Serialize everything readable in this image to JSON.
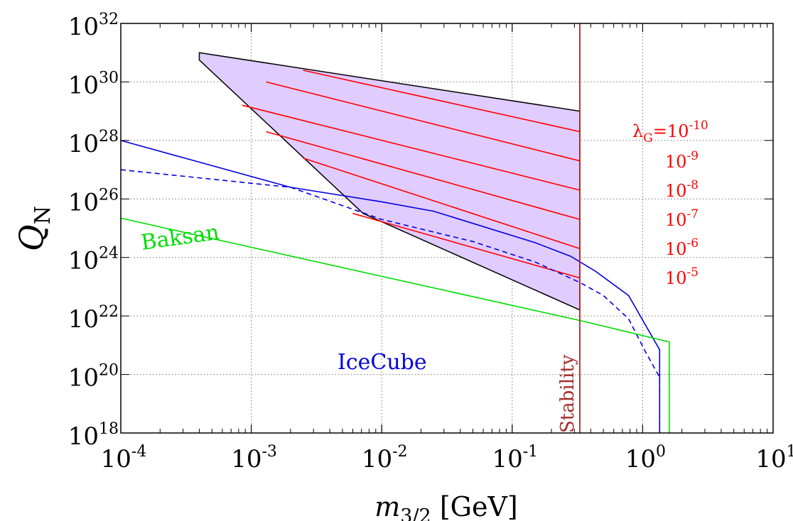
{
  "chart_data": {
    "type": "line",
    "x_scale": "log",
    "y_scale": "log",
    "xlim": [
      0.0001,
      10
    ],
    "ylim": [
      1e+18,
      1e+32
    ],
    "grid": true,
    "x_ticks": [
      {
        "value": 0.0001,
        "base": "10",
        "exp": "-4"
      },
      {
        "value": 0.001,
        "base": "10",
        "exp": "-3"
      },
      {
        "value": 0.01,
        "base": "10",
        "exp": "-2"
      },
      {
        "value": 0.1,
        "base": "10",
        "exp": "-1"
      },
      {
        "value": 1,
        "base": "10",
        "exp": "0"
      },
      {
        "value": 10,
        "base": "10",
        "exp": "1"
      }
    ],
    "y_ticks": [
      {
        "value": 1e+18,
        "base": "10",
        "exp": "18"
      },
      {
        "value": 1e+20,
        "base": "10",
        "exp": "20"
      },
      {
        "value": 1e+22,
        "base": "10",
        "exp": "22"
      },
      {
        "value": 1e+24,
        "base": "10",
        "exp": "24"
      },
      {
        "value": 1e+26,
        "base": "10",
        "exp": "26"
      },
      {
        "value": 1e+28,
        "base": "10",
        "exp": "28"
      },
      {
        "value": 1e+30,
        "base": "10",
        "exp": "30"
      },
      {
        "value": 1e+32,
        "base": "10",
        "exp": "32"
      }
    ],
    "xlabel": {
      "main": "m",
      "sub": "3/2",
      "unit": " [GeV]"
    },
    "ylabel": {
      "main": "Q",
      "sub": "N"
    },
    "region": {
      "fill": "#e0ccff",
      "stroke": "#000000",
      "polygon": [
        [
          0.0004,
          1e+31
        ],
        [
          0.33,
          1e+29
        ],
        [
          0.33,
          1.6e+22
        ],
        [
          0.0072,
          3.2e+25
        ],
        [
          0.0004,
          5.6e+30
        ]
      ]
    },
    "series": [
      {
        "name": "IceCube",
        "color": "#0000dd",
        "dash": "",
        "x": [
          0.0001,
          0.002,
          0.01,
          0.025,
          0.15,
          0.28,
          0.43,
          0.78,
          1.35,
          1.35
        ],
        "y": [
          1e+28,
          2.5e+26,
          8e+25,
          3.8e+25,
          3.2e+24,
          1.1e+24,
          3.5e+23,
          5e+22,
          7e+20,
          1e+18
        ]
      },
      {
        "name": "IceCube-dashed",
        "color": "#0000dd",
        "dash": "7,5",
        "x": [
          0.0001,
          0.002,
          0.01,
          0.05,
          0.15,
          0.33,
          0.5,
          0.78,
          1.05,
          1.35,
          1.35
        ],
        "y": [
          1e+27,
          2.5e+26,
          2e+25,
          3.5e+24,
          7e+23,
          1.4e+23,
          5e+22,
          8e+21,
          6e+20,
          8e+19,
          1e+18
        ]
      },
      {
        "name": "Baksan",
        "color": "#00dd00",
        "dash": "",
        "x": [
          0.0001,
          0.33,
          1.6,
          1.6
        ],
        "y": [
          2.2e+25,
          7e+21,
          1.3e+21,
          1e+18
        ]
      }
    ],
    "lambda_lines": [
      {
        "label": "λG=10-10",
        "color": "#ff0000",
        "x": [
          0.0025,
          0.33
        ],
        "y": [
          2.5e+30,
          2e+28
        ]
      },
      {
        "label": "10-9",
        "color": "#ff0000",
        "x": [
          0.0013,
          0.33
        ],
        "y": [
          1e+30,
          2e+27
        ]
      },
      {
        "label": "10-8",
        "color": "#ff0000",
        "x": [
          0.00085,
          0.33
        ],
        "y": [
          1.6e+29,
          2e+26
        ]
      },
      {
        "label": "10-7",
        "color": "#ff0000",
        "x": [
          0.0013,
          0.33
        ],
        "y": [
          2e+28,
          2e+25
        ]
      },
      {
        "label": "10-6",
        "color": "#ff0000",
        "x": [
          0.0025,
          0.33
        ],
        "y": [
          2.5e+27,
          2e+24
        ]
      },
      {
        "label": "10-5",
        "color": "#ff0000",
        "x": [
          0.006,
          0.33
        ],
        "y": [
          3.2e+25,
          2e+23
        ]
      }
    ],
    "stability": {
      "x": 0.33,
      "color": "#a52a2a",
      "label": "Stability"
    },
    "annotations": {
      "baksan": {
        "text": "Baksan",
        "color": "#00dd00"
      },
      "icecube": {
        "text": "IceCube",
        "color": "#0000dd"
      },
      "lambda_sym": "λ",
      "lambda_sub": "G",
      "lambda_eq": "=10",
      "lambda_first_exp": "-10",
      "lambda_rest": [
        {
          "base": "10",
          "exp": "-9"
        },
        {
          "base": "10",
          "exp": "-8"
        },
        {
          "base": "10",
          "exp": "-7"
        },
        {
          "base": "10",
          "exp": "-6"
        },
        {
          "base": "10",
          "exp": "-5"
        }
      ]
    }
  }
}
